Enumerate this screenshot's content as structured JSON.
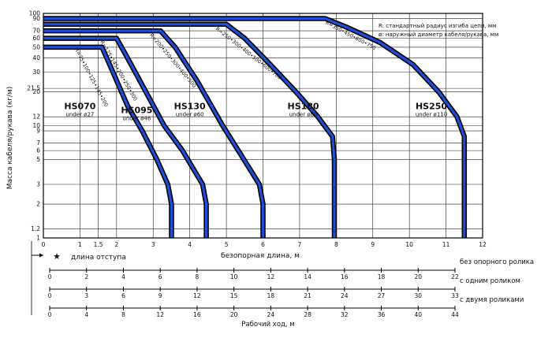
{
  "chart_data": {
    "type": "line",
    "ylabel": "Масса кабеля/рукава (кг/м)",
    "xlabel": "безопорная длина, м",
    "x_ticks": [
      "0",
      "1",
      "1.5",
      "2",
      "3",
      "4",
      "5",
      "6",
      "7",
      "8",
      "9",
      "10",
      "11",
      "12"
    ],
    "y_ticks": [
      "1",
      "1.2",
      "2",
      "3",
      "5",
      "6",
      "7",
      "9",
      "10",
      "12",
      "20",
      "21.5",
      "30",
      "40",
      "50",
      "60",
      "70",
      "90",
      "100"
    ],
    "xlim": [
      0,
      12
    ],
    "ylim": [
      1,
      100
    ],
    "y_scale": "log",
    "legend": [
      "R: стандартный радиус изгиба цепи, мм",
      "ø: наружный диаметр кабеля/рукава, мм"
    ],
    "series": [
      {
        "name": "HS070",
        "sub": "under ø27",
        "radius": "R=75•100•125•145•200",
        "points": [
          [
            0,
            50
          ],
          [
            1.6,
            50
          ],
          [
            1.9,
            30
          ],
          [
            2.3,
            15
          ],
          [
            2.7,
            9
          ],
          [
            3.1,
            5
          ],
          [
            3.4,
            3
          ],
          [
            3.5,
            2
          ],
          [
            3.5,
            1
          ]
        ]
      },
      {
        "name": "HS095",
        "sub": "under ø46",
        "radius": "R=125•145•200•250•300",
        "points": [
          [
            0,
            60
          ],
          [
            2,
            60
          ],
          [
            2.3,
            40
          ],
          [
            2.8,
            20
          ],
          [
            3.3,
            10
          ],
          [
            3.8,
            6
          ],
          [
            4.35,
            3
          ],
          [
            4.45,
            2
          ],
          [
            4.45,
            1
          ]
        ]
      },
      {
        "name": "HS130",
        "sub": "under ø60",
        "radius": "R=200•250•300•400•500",
        "points": [
          [
            0,
            70
          ],
          [
            3.2,
            70
          ],
          [
            3.6,
            50
          ],
          [
            4.2,
            25
          ],
          [
            4.9,
            10
          ],
          [
            5.4,
            5.5
          ],
          [
            5.9,
            3
          ],
          [
            6,
            2
          ],
          [
            6,
            1
          ]
        ]
      },
      {
        "name": "HS180",
        "sub": "under ø80",
        "radius": "R=250•300•400•500•600•700",
        "points": [
          [
            0,
            80
          ],
          [
            5,
            80
          ],
          [
            5.5,
            60
          ],
          [
            6.2,
            35
          ],
          [
            6.9,
            20
          ],
          [
            7.5,
            12
          ],
          [
            7.9,
            8
          ],
          [
            7.95,
            5
          ],
          [
            7.95,
            1
          ]
        ]
      },
      {
        "name": "HS250",
        "sub": "under ø110",
        "radius": "R=350•450•600•750",
        "points": [
          [
            0,
            90
          ],
          [
            7.7,
            90
          ],
          [
            8.3,
            75
          ],
          [
            9.2,
            55
          ],
          [
            10.1,
            35
          ],
          [
            10.8,
            20
          ],
          [
            11.3,
            12
          ],
          [
            11.5,
            8
          ],
          [
            11.5,
            1
          ]
        ]
      }
    ]
  },
  "offset_label": "длина отступа",
  "scales": [
    {
      "name": "без опорного ролика",
      "max": 22,
      "ticks": [
        "0",
        "2",
        "4",
        "6",
        "8",
        "10",
        "12",
        "14",
        "16",
        "18",
        "20",
        "22"
      ]
    },
    {
      "name": "с одним роликом",
      "max": 33,
      "ticks": [
        "0",
        "3",
        "6",
        "9",
        "12",
        "15",
        "18",
        "21",
        "24",
        "27",
        "30",
        "33"
      ]
    },
    {
      "name": "с двумя роликами",
      "max": 44,
      "ticks": [
        "0",
        "4",
        "8",
        "12",
        "16",
        "20",
        "24",
        "28",
        "32",
        "36",
        "40",
        "44"
      ]
    }
  ],
  "scales_title": "Рабочий ход, м",
  "colors": {
    "curve_outer": "#000000",
    "curve_inner": "#1e4fd8",
    "grid": "#222222"
  }
}
